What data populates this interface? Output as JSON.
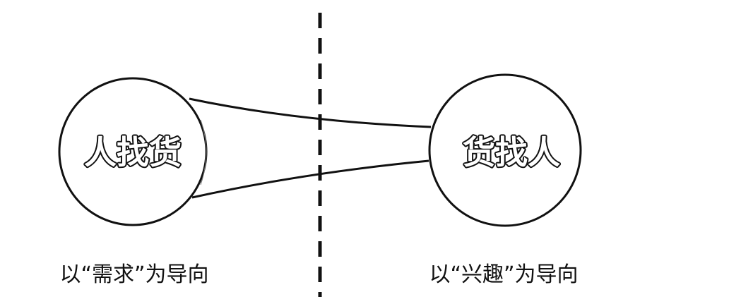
{
  "diagram": {
    "left_node": {
      "label": "人找货"
    },
    "right_node": {
      "label": "货找人"
    },
    "left_caption": "以“需求”为导向",
    "right_caption": "以“兴趣”为导向"
  },
  "colors": {
    "stroke": "#111111",
    "background": "#ffffff",
    "text_fill": "#ffffff"
  }
}
